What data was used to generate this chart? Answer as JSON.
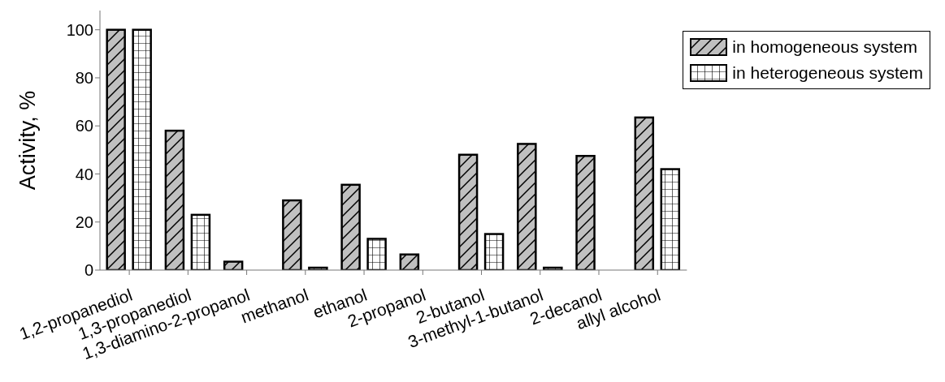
{
  "chart_data": {
    "type": "bar",
    "ylabel": "Activity, %",
    "categories": [
      "1,2-propanediol",
      "1,3-propanediol",
      "1,3-diamino-2-propanol",
      "methanol",
      "ethanol",
      "2-propanol",
      "2-butanol",
      "3-methyl-1-butanol",
      "2-decanol",
      "allyl alcohol"
    ],
    "series": [
      {
        "name": "in homogeneous system",
        "color": "#c0c0c0",
        "values": [
          100,
          58,
          3.5,
          29,
          35.5,
          6.5,
          48,
          52.5,
          47.5,
          63.5
        ]
      },
      {
        "name": "in heterogeneous system",
        "color": "#ffffff",
        "values": [
          100,
          23,
          null,
          1,
          13,
          null,
          15,
          1,
          null,
          42
        ]
      }
    ],
    "ylim": [
      0,
      108
    ],
    "yticks": [
      0,
      20,
      40,
      60,
      80,
      100
    ],
    "legend": "top right"
  }
}
